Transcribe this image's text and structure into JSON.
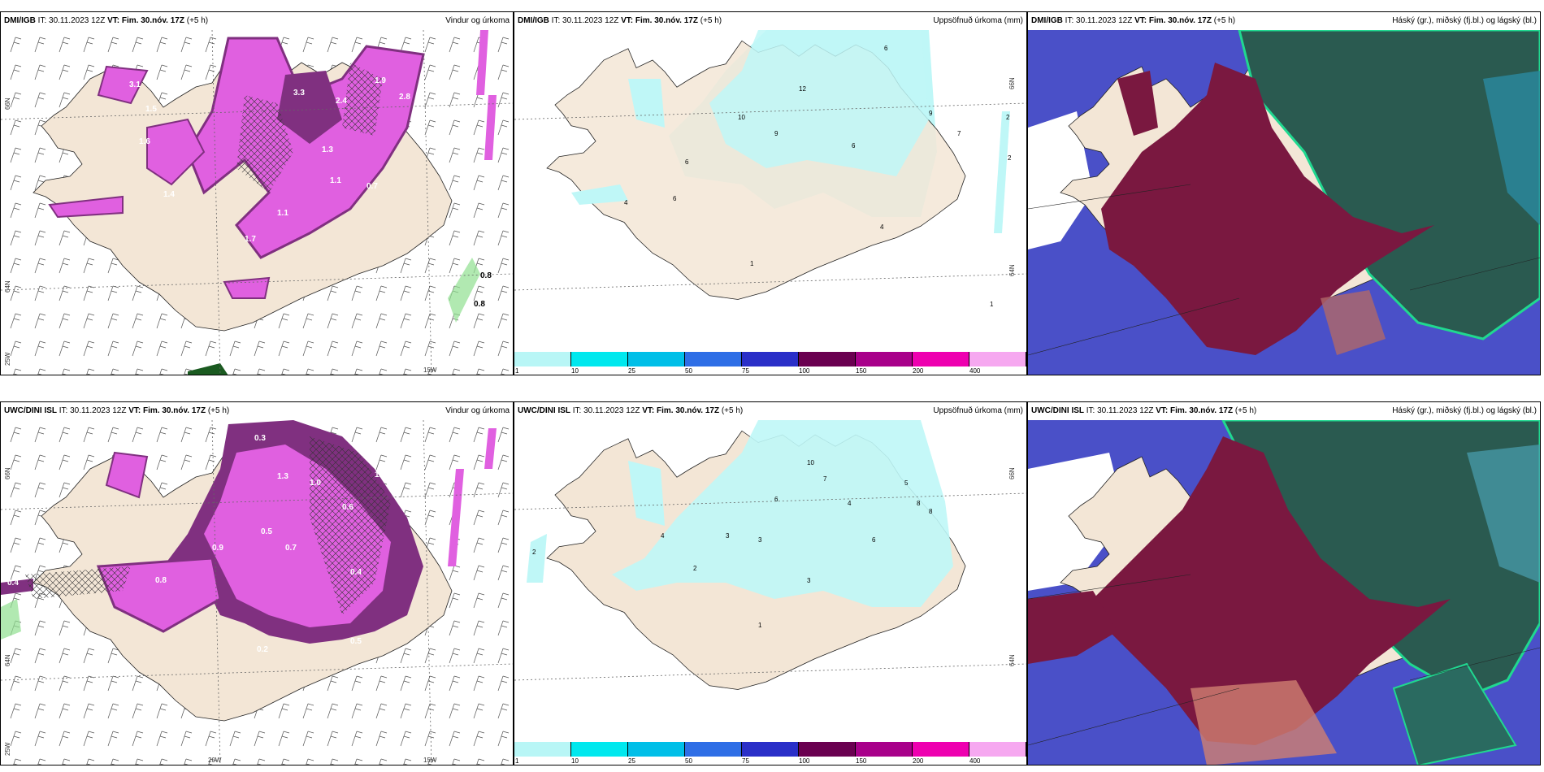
{
  "panels": [
    {
      "source": "DMI/IGB",
      "it": "IT: 30.11.2023 12Z",
      "vt_label": "VT: Fim. 30.nóv. 17Z",
      "offset": "(+5 h)",
      "title": "Vindur og úrkoma"
    },
    {
      "source": "DMI/IGB",
      "it": "IT: 30.11.2023 12Z",
      "vt_label": "VT: Fim. 30.nóv. 17Z",
      "offset": "(+5 h)",
      "title": "Uppsöfnuð úrkoma (mm)"
    },
    {
      "source": "DMI/IGB",
      "it": "IT: 30.11.2023 12Z",
      "vt_label": "VT: Fim. 30.nóv. 17Z",
      "offset": "(+5 h)",
      "title": "Háský (gr.), miðský (fj.bl.) og lágský (bl.)"
    },
    {
      "source": "UWC/DINI ISL",
      "it": "IT: 30.11.2023 12Z",
      "vt_label": "VT: Fim. 30.nóv. 17Z",
      "offset": "(+5 h)",
      "title": "Vindur og úrkoma"
    },
    {
      "source": "UWC/DINI ISL",
      "it": "IT: 30.11.2023 12Z",
      "vt_label": "VT: Fim. 30.nóv. 17Z",
      "offset": "(+5 h)",
      "title": "Uppsöfnuð úrkoma (mm)"
    },
    {
      "source": "UWC/DINI ISL",
      "it": "IT: 30.11.2023 12Z",
      "vt_label": "VT: Fim. 30.nóv. 17Z",
      "offset": "(+5 h)",
      "title": "Háský (gr.), miðský (fj.bl.) og lágský (bl.)"
    }
  ],
  "axis_labels": {
    "lat66": "66N",
    "lat64": "64N",
    "lon25": "25W",
    "lon20": "20W",
    "lon15": "15W"
  },
  "colorbar": {
    "labels": [
      "1",
      "10",
      "25",
      "50",
      "75",
      "100",
      "150",
      "200",
      "400"
    ],
    "colors": [
      "#b8f6f6",
      "#00e8ee",
      "#00bfe8",
      "#2e6ee6",
      "#2a2fc8",
      "#6a0050",
      "#a8008a",
      "#ee00b0",
      "#f6a8f0"
    ]
  },
  "wind_precip_values_top": [
    "3.1",
    "1.5",
    "1.6",
    "1.4",
    "3.3",
    "2.4",
    "1.9",
    "2.8",
    "2.7",
    "1.3",
    "1.1",
    "0.7",
    "1.7",
    "1.1",
    "0.8",
    "0.8"
  ],
  "wind_precip_values_bottom": [
    "0.3",
    "1.3",
    "0.4",
    "1.0",
    "0.6",
    "0.5",
    "0.7",
    "0.9",
    "0.8",
    "0.4",
    "1.2",
    "0.2",
    "0.5"
  ],
  "accum_values_top": [
    "6",
    "9",
    "7",
    "2",
    "2",
    "1",
    "1",
    "6",
    "6",
    "4",
    "4",
    "12",
    "10",
    "9",
    "6"
  ],
  "accum_values_bottom": [
    "2",
    "3",
    "6",
    "7",
    "5",
    "4",
    "8",
    "3",
    "2",
    "1",
    "4",
    "3",
    "10",
    "6",
    "8"
  ],
  "colors": {
    "land": "#f3e6d6",
    "precip_light": "#f0a0f0",
    "precip_mid": "#e060e0",
    "precip_dark": "#803080",
    "accum_fill": "#bff7f7",
    "cloud_high": "#7a1840",
    "cloud_mid": "#2a5a50",
    "cloud_low": "#4a50c8",
    "cloud_green": "#20d890"
  }
}
